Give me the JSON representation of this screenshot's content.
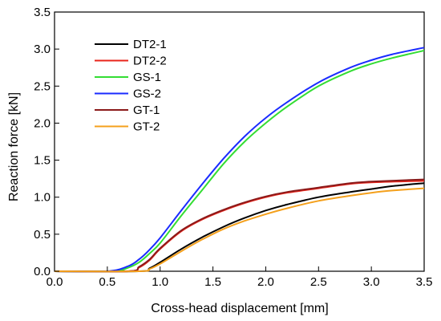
{
  "chart_data": {
    "type": "line",
    "title": "",
    "xlabel": "Cross-head displacement [mm]",
    "ylabel": "Reaction force [kN]",
    "xlim": [
      0,
      3.5
    ],
    "ylim": [
      0,
      3.5
    ],
    "xticks": [
      0.0,
      0.5,
      1.0,
      1.5,
      2.0,
      2.5,
      3.0,
      3.5
    ],
    "yticks": [
      0.0,
      0.5,
      1.0,
      1.5,
      2.0,
      2.5,
      3.0,
      3.5
    ],
    "xtick_labels": [
      "0.0",
      "0.5",
      "1.0",
      "1.5",
      "2.0",
      "2.5",
      "3.0",
      "3.5"
    ],
    "ytick_labels": [
      "0.0",
      "0.5",
      "1.0",
      "1.5",
      "2.0",
      "2.5",
      "3.0",
      "3.5"
    ],
    "grid": false,
    "legend_position": "top-left",
    "series": [
      {
        "name": "DT2-1",
        "color": "#000000",
        "x": [
          0.0,
          0.8,
          0.9,
          1.0,
          1.2,
          1.4,
          1.6,
          1.8,
          2.0,
          2.2,
          2.5,
          2.8,
          3.0,
          3.2,
          3.5
        ],
        "y": [
          0.0,
          0.0,
          0.04,
          0.12,
          0.3,
          0.46,
          0.6,
          0.72,
          0.82,
          0.9,
          1.0,
          1.07,
          1.11,
          1.15,
          1.19
        ]
      },
      {
        "name": "DT2-2",
        "color": "#e8251b",
        "x": [
          0.0,
          0.7,
          0.8,
          0.9,
          1.0,
          1.2,
          1.4,
          1.6,
          1.8,
          2.0,
          2.2,
          2.5,
          2.8,
          3.0,
          3.5
        ],
        "y": [
          0.0,
          0.0,
          0.05,
          0.15,
          0.3,
          0.54,
          0.7,
          0.82,
          0.92,
          1.0,
          1.06,
          1.12,
          1.18,
          1.2,
          1.22
        ]
      },
      {
        "name": "GS-1",
        "color": "#33dd33",
        "x": [
          0.0,
          0.55,
          0.7,
          0.8,
          0.9,
          1.0,
          1.2,
          1.4,
          1.6,
          1.8,
          2.0,
          2.2,
          2.5,
          2.8,
          3.0,
          3.2,
          3.5
        ],
        "y": [
          0.0,
          0.0,
          0.05,
          0.12,
          0.24,
          0.38,
          0.75,
          1.1,
          1.45,
          1.75,
          2.0,
          2.22,
          2.5,
          2.7,
          2.8,
          2.88,
          2.98
        ]
      },
      {
        "name": "GS-2",
        "color": "#1a2bff",
        "x": [
          0.0,
          0.5,
          0.7,
          0.8,
          0.9,
          1.0,
          1.2,
          1.4,
          1.6,
          1.8,
          2.0,
          2.2,
          2.5,
          2.8,
          3.0,
          3.2,
          3.5
        ],
        "y": [
          0.0,
          0.0,
          0.07,
          0.16,
          0.29,
          0.45,
          0.82,
          1.18,
          1.52,
          1.82,
          2.07,
          2.28,
          2.55,
          2.75,
          2.85,
          2.93,
          3.02
        ]
      },
      {
        "name": "GT-1",
        "color": "#8b1a1a",
        "x": [
          0.0,
          0.7,
          0.8,
          0.9,
          1.0,
          1.2,
          1.4,
          1.6,
          1.8,
          2.0,
          2.2,
          2.5,
          2.8,
          3.0,
          3.5
        ],
        "y": [
          0.0,
          0.0,
          0.06,
          0.16,
          0.31,
          0.55,
          0.71,
          0.83,
          0.93,
          1.01,
          1.07,
          1.13,
          1.19,
          1.21,
          1.24
        ]
      },
      {
        "name": "GT-2",
        "color": "#f4a01c",
        "x": [
          0.0,
          0.8,
          0.9,
          1.0,
          1.2,
          1.4,
          1.6,
          1.8,
          2.0,
          2.2,
          2.5,
          2.8,
          3.0,
          3.2,
          3.5
        ],
        "y": [
          0.0,
          0.0,
          0.03,
          0.1,
          0.27,
          0.43,
          0.57,
          0.68,
          0.77,
          0.85,
          0.95,
          1.02,
          1.06,
          1.09,
          1.12
        ]
      }
    ]
  }
}
